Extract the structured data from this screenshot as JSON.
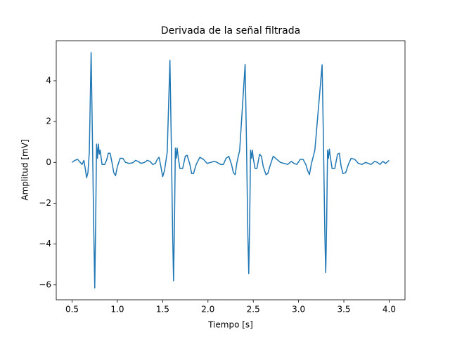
{
  "chart_data": {
    "type": "line",
    "title": "Derivada de la señal filtrada",
    "x_label": "Tiempo [s]",
    "y_label": "Amplitud [mV]",
    "x": [
      0.5,
      0.53,
      0.56,
      0.59,
      0.61,
      0.63,
      0.645,
      0.66,
      0.675,
      0.69,
      0.71,
      0.725,
      0.74,
      0.75,
      0.76,
      0.77,
      0.78,
      0.79,
      0.8,
      0.81,
      0.83,
      0.86,
      0.88,
      0.9,
      0.92,
      0.94,
      0.96,
      0.98,
      1.0,
      1.03,
      1.06,
      1.09,
      1.13,
      1.17,
      1.2,
      1.23,
      1.26,
      1.3,
      1.33,
      1.36,
      1.39,
      1.42,
      1.44,
      1.46,
      1.48,
      1.5,
      1.52,
      1.55,
      1.58,
      1.595,
      1.61,
      1.62,
      1.63,
      1.64,
      1.65,
      1.66,
      1.67,
      1.69,
      1.72,
      1.75,
      1.77,
      1.8,
      1.82,
      1.84,
      1.87,
      1.91,
      1.95,
      1.99,
      2.03,
      2.07,
      2.1,
      2.14,
      2.17,
      2.2,
      2.23,
      2.26,
      2.28,
      2.3,
      2.32,
      2.35,
      2.41,
      2.425,
      2.44,
      2.45,
      2.46,
      2.47,
      2.48,
      2.49,
      2.5,
      2.52,
      2.54,
      2.57,
      2.59,
      2.61,
      2.64,
      2.66,
      2.69,
      2.72,
      2.76,
      2.8,
      2.84,
      2.88,
      2.92,
      2.95,
      2.98,
      3.02,
      3.05,
      3.08,
      3.1,
      3.12,
      3.14,
      3.18,
      3.26,
      3.275,
      3.29,
      3.3,
      3.31,
      3.32,
      3.33,
      3.34,
      3.35,
      3.37,
      3.4,
      3.43,
      3.45,
      3.47,
      3.49,
      3.52,
      3.55,
      3.58,
      3.62,
      3.66,
      3.7,
      3.74,
      3.77,
      3.8,
      3.84,
      3.87,
      3.9,
      3.93,
      3.96,
      4.0
    ],
    "series": [
      {
        "color": "#1f77b4",
        "values": [
          0.0,
          0.1,
          0.15,
          0.0,
          -0.1,
          0.1,
          -0.3,
          -0.75,
          -0.5,
          0.5,
          5.38,
          1.0,
          -3.5,
          -6.15,
          -3.0,
          0.9,
          0.2,
          0.9,
          0.4,
          0.6,
          -0.1,
          -0.1,
          0.1,
          0.45,
          0.45,
          0.0,
          -0.5,
          -0.65,
          -0.2,
          0.2,
          0.2,
          0.0,
          -0.05,
          -0.02,
          0.1,
          0.05,
          -0.05,
          0.0,
          0.1,
          0.05,
          -0.1,
          -0.05,
          0.15,
          0.25,
          -0.2,
          -0.7,
          -0.4,
          0.5,
          5.0,
          1.0,
          -3.5,
          -5.8,
          -3.0,
          0.7,
          0.2,
          0.7,
          0.3,
          -0.3,
          -0.3,
          0.3,
          0.35,
          -0.1,
          -0.55,
          -0.55,
          -0.1,
          0.25,
          0.15,
          -0.05,
          0.0,
          0.05,
          0.0,
          -0.1,
          -0.1,
          0.2,
          0.3,
          -0.1,
          -0.5,
          -0.6,
          0.0,
          0.6,
          4.8,
          1.0,
          -3.5,
          -5.45,
          -3.0,
          0.6,
          0.2,
          0.6,
          0.2,
          -0.3,
          -0.3,
          0.4,
          0.3,
          -0.2,
          -0.6,
          -0.55,
          -0.1,
          0.3,
          0.15,
          0.0,
          -0.05,
          -0.1,
          0.05,
          -0.05,
          -0.1,
          0.15,
          0.15,
          -0.1,
          -0.4,
          -0.6,
          -0.1,
          0.6,
          4.78,
          1.0,
          -3.5,
          -5.4,
          -3.0,
          0.6,
          0.2,
          0.65,
          0.3,
          -0.3,
          -0.3,
          0.4,
          0.45,
          -0.2,
          -0.55,
          -0.5,
          -0.1,
          0.2,
          0.15,
          -0.05,
          -0.1,
          0.0,
          -0.05,
          -0.1,
          0.05,
          0.0,
          -0.1,
          0.05,
          -0.05,
          0.1
        ]
      }
    ],
    "xlim": [
      0.325,
      4.175
    ],
    "xticks": [
      0.5,
      {
        "value": 1,
        "label": "1.0"
      },
      1.5,
      {
        "value": 2,
        "label": "2.0"
      },
      2.5,
      {
        "value": 3,
        "label": "3.0"
      },
      3.5,
      {
        "value": 4,
        "label": "4.0"
      }
    ],
    "ylim": [
      -6.73,
      5.96
    ],
    "yticks": [
      {
        "value": -6,
        "label": "−6"
      },
      {
        "value": -4,
        "label": "−4"
      },
      {
        "value": -2,
        "label": "−2"
      },
      0,
      2,
      4
    ],
    "grid": false
  }
}
